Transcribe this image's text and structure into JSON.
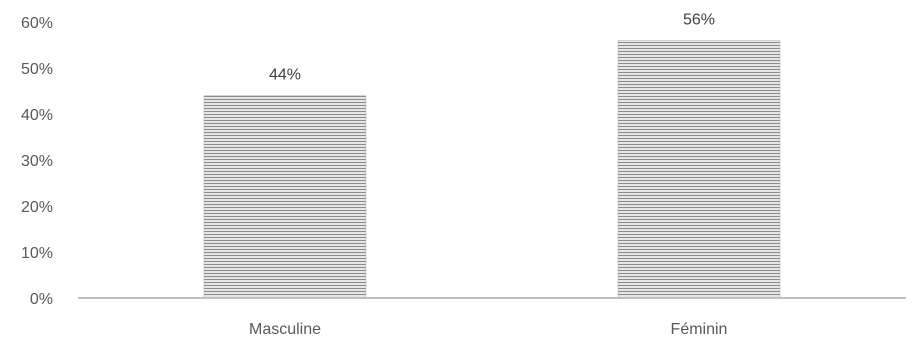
{
  "chart_data": {
    "type": "bar",
    "categories": [
      "Masculine",
      "Féminin"
    ],
    "values": [
      44,
      56
    ],
    "data_labels": [
      "44%",
      "56%"
    ],
    "ylim": [
      0,
      60
    ],
    "y_ticks": [
      0,
      10,
      20,
      30,
      40,
      50,
      60
    ],
    "y_tick_labels": [
      "0%",
      "10%",
      "20%",
      "30%",
      "40%",
      "50%",
      "60%"
    ],
    "grid": false,
    "legend": "none",
    "bar_fill": "#e6e6e6",
    "bar_hatch_color": "#8c8c8c",
    "axis_color": "#bfbfbf",
    "text_color": "#595959"
  }
}
